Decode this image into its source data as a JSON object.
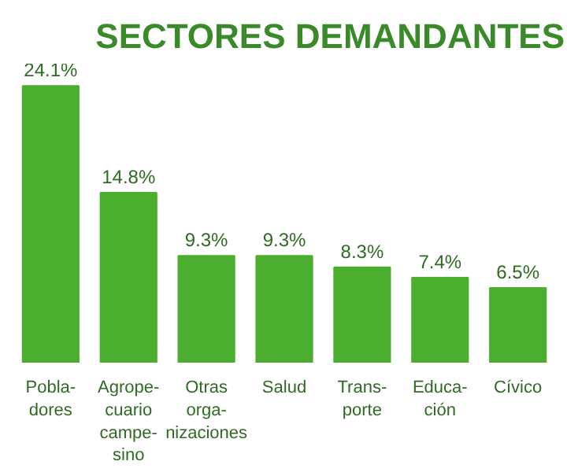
{
  "chart_data": {
    "type": "bar",
    "title": "SECTORES DEMANDANTES",
    "categories": [
      "Pobla-\ndores",
      "Agrope-\ncuario\ncampe-\nsino",
      "Otras\norga-\nnizaciones",
      "Salud",
      "Trans-\nporte",
      "Educa-\nción",
      "Cívico"
    ],
    "values": [
      24.1,
      14.8,
      9.3,
      9.3,
      8.3,
      7.4,
      6.5
    ],
    "value_labels": [
      "24.1%",
      "14.8%",
      "9.3%",
      "9.3%",
      "8.3%",
      "7.4%",
      "6.5%"
    ],
    "color": "#4cae2e"
  }
}
